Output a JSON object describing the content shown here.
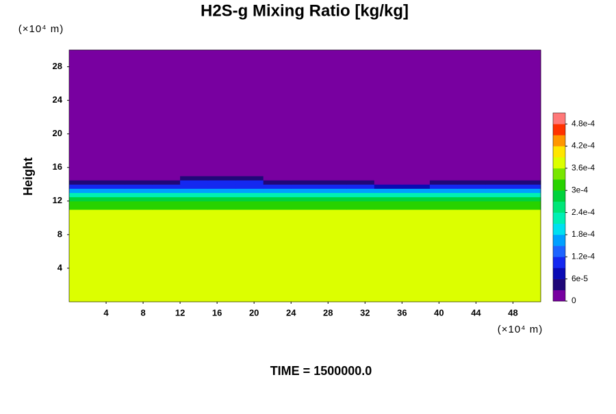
{
  "chart_data": {
    "type": "contour",
    "title": "H2S-g Mixing Ratio [kg/kg]",
    "ylabel": "Height",
    "y_unit": "(×10⁴ m)",
    "x_unit": "(×10⁴ m)",
    "footer": "TIME = 1500000.0",
    "xlim": [
      0,
      51
    ],
    "ylim": [
      0,
      30
    ],
    "xticks": [
      4,
      8,
      12,
      16,
      20,
      24,
      28,
      32,
      36,
      40,
      44,
      48
    ],
    "yticks": [
      4,
      8,
      12,
      16,
      20,
      24,
      28
    ],
    "x": [
      0,
      3,
      6,
      9,
      12,
      15,
      18,
      21,
      24,
      27,
      30,
      33,
      36,
      39,
      42,
      45,
      48,
      51
    ],
    "y": [
      0,
      11,
      12,
      12.5,
      13,
      13.5,
      14,
      14.5,
      15,
      30
    ],
    "z": [
      [
        0.00037,
        0.00037,
        0.00037,
        0.00037,
        0.00037,
        0.00037,
        0.00037,
        0.00037,
        0.00037,
        0.00037,
        0.00037,
        0.00037,
        0.00037,
        0.00037,
        0.00037,
        0.00037,
        0.00037
      ],
      [
        0.00031,
        0.00031,
        0.00031,
        0.00031,
        0.00031,
        0.00031,
        0.00031,
        0.00031,
        0.00031,
        0.00031,
        0.00031,
        0.00031,
        0.00031,
        0.00031,
        0.00031,
        0.00031,
        0.00031
      ],
      [
        0.00027,
        0.00027,
        0.00027,
        0.00027,
        0.00027,
        0.00027,
        0.00027,
        0.00027,
        0.00027,
        0.00027,
        0.00027,
        0.00027,
        0.00027,
        0.00027,
        0.00027,
        0.00027,
        0.00027
      ],
      [
        0.00022,
        0.00022,
        0.00022,
        0.00022,
        0.00022,
        0.00022,
        0.00022,
        0.00022,
        0.00022,
        0.00022,
        0.00022,
        0.00022,
        0.00022,
        0.00022,
        0.00022,
        0.00022,
        0.00022
      ],
      [
        0.00016,
        0.00016,
        0.00016,
        0.00016,
        0.00016,
        0.00016,
        0.00016,
        0.00016,
        0.00016,
        0.00016,
        0.00016,
        0.00016,
        0.00016,
        0.00016,
        0.00016,
        0.00016,
        0.00016
      ],
      [
        0.0001,
        0.0001,
        0.0001,
        0.0001,
        0.0001,
        0.0001,
        0.0001,
        0.0001,
        0.0001,
        0.0001,
        0.0001,
        6e-05,
        6e-05,
        0.0001,
        0.0001,
        0.0001,
        0.0001
      ],
      [
        4e-05,
        4e-05,
        4e-05,
        4e-05,
        0.0001,
        0.0001,
        0.0001,
        4e-05,
        4e-05,
        4e-05,
        4e-05,
        0,
        0,
        4e-05,
        4e-05,
        4e-05,
        4e-05
      ],
      [
        0,
        0,
        0,
        0,
        4e-05,
        4e-05,
        4e-05,
        0,
        0,
        0,
        0,
        0,
        0,
        0,
        0,
        0,
        0
      ],
      [
        0,
        0,
        0,
        0,
        0,
        0,
        0,
        0,
        0,
        0,
        0,
        0,
        0,
        0,
        0,
        0,
        0
      ]
    ],
    "zlim": [
      0,
      0.00051
    ],
    "zticks": [
      0,
      {
        "value": 6e-05,
        "label": "6e-5"
      },
      {
        "value": 0.00012,
        "label": "1.2e-4"
      },
      {
        "value": 0.00018,
        "label": "1.8e-4"
      },
      {
        "value": 0.00024,
        "label": "2.4e-4"
      },
      {
        "value": 0.0003,
        "label": "3e-4"
      },
      {
        "value": 0.00036,
        "label": "3.6e-4"
      },
      {
        "value": 0.00042,
        "label": "4.2e-4"
      },
      {
        "value": 0.00048,
        "label": "4.8e-4"
      }
    ],
    "colors": [
      "#7800a0",
      "#200878",
      "#0a0ab4",
      "#1428f0",
      "#1e64ff",
      "#00a0ff",
      "#00e0f0",
      "#00f0b4",
      "#00e678",
      "#00d23c",
      "#28d200",
      "#78e600",
      "#dcff00",
      "#ffe600",
      "#ff9600",
      "#ff3200",
      "#ff7878"
    ]
  }
}
